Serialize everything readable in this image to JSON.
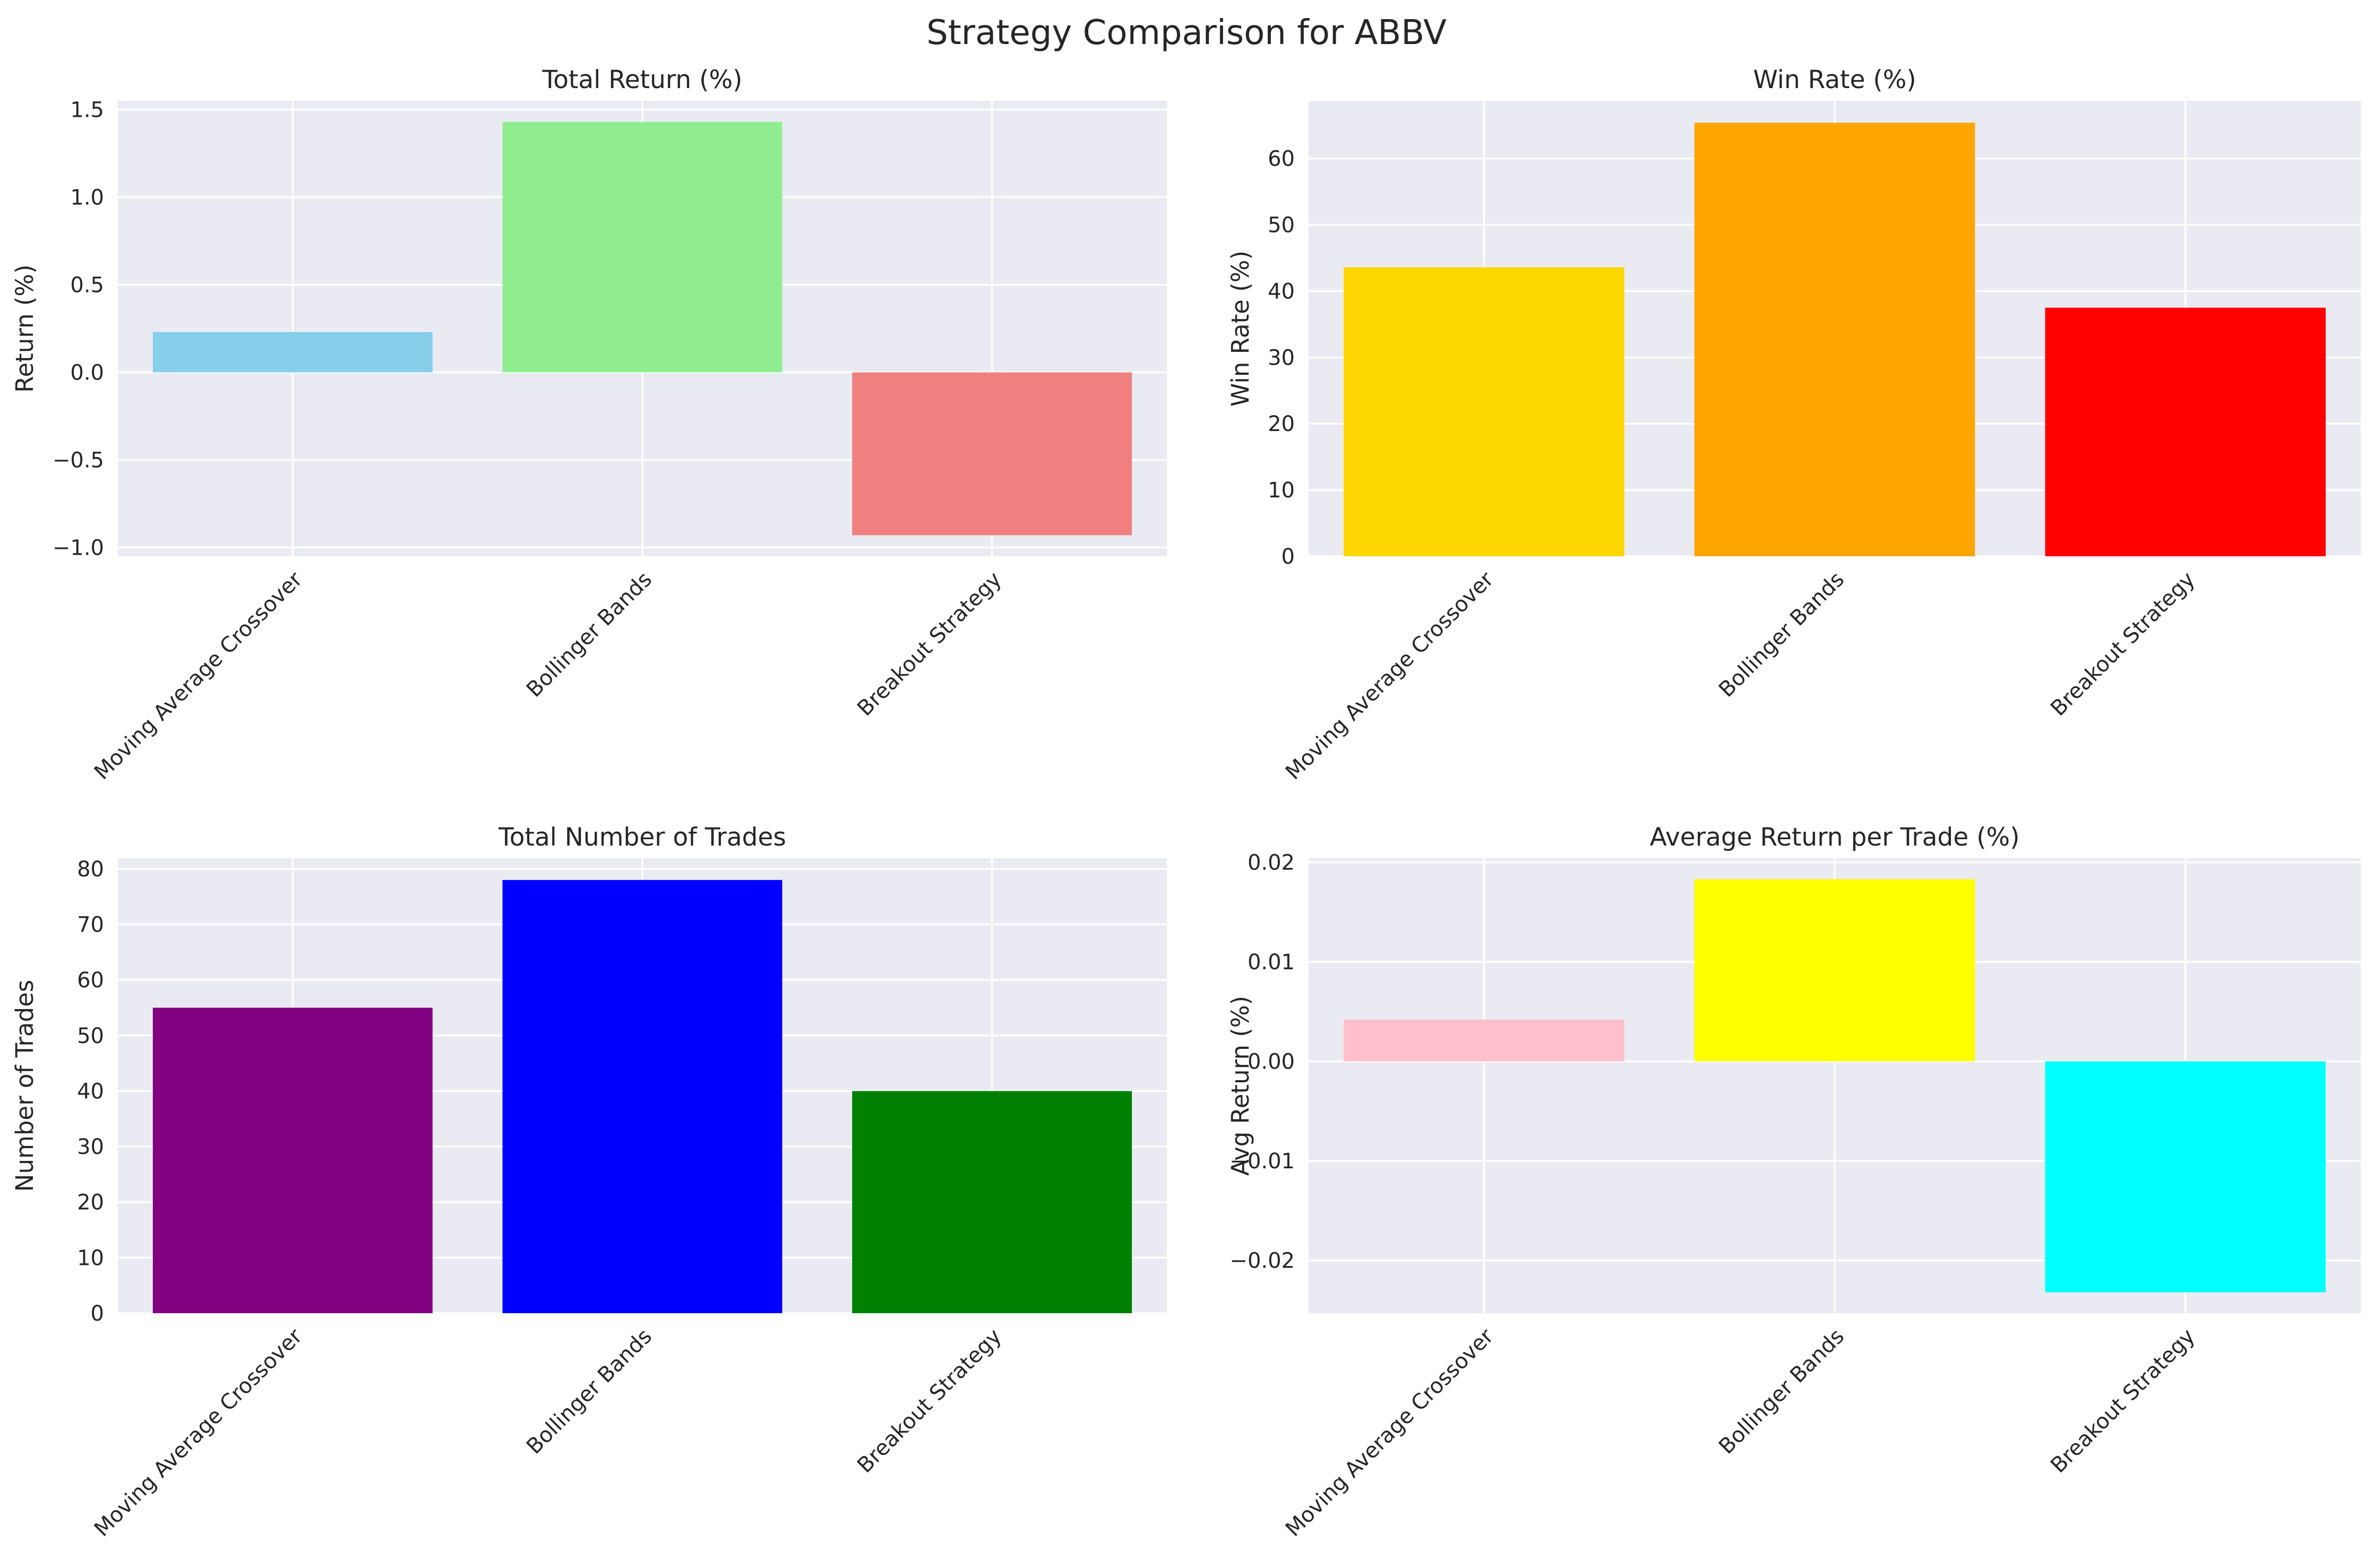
{
  "figure": {
    "title": "Strategy Comparison for ABBV"
  },
  "chart_data": [
    {
      "type": "bar",
      "title": "Total Return (%)",
      "xlabel": "",
      "ylabel": "Return (%)",
      "categories": [
        "Moving Average Crossover",
        "Bollinger Bands",
        "Breakout Strategy"
      ],
      "values": [
        0.23,
        1.43,
        -0.93
      ],
      "colors": [
        "#87CEEB",
        "#90EE90",
        "#F08080"
      ],
      "ylim": [
        -1.05,
        1.55
      ],
      "yticks": [
        -1.0,
        -0.5,
        0.0,
        0.5,
        1.0,
        1.5
      ],
      "ytick_labels": [
        "−1.0",
        "−0.5",
        "0.0",
        "0.5",
        "1.0",
        "1.5"
      ],
      "grid": true
    },
    {
      "type": "bar",
      "title": "Win Rate (%)",
      "xlabel": "",
      "ylabel": "Win Rate (%)",
      "categories": [
        "Moving Average Crossover",
        "Bollinger Bands",
        "Breakout Strategy"
      ],
      "values": [
        43.6,
        65.4,
        37.5
      ],
      "colors": [
        "#FFD700",
        "#FFA500",
        "#FF0000"
      ],
      "ylim": [
        0,
        68.7
      ],
      "yticks": [
        0,
        10,
        20,
        30,
        40,
        50,
        60
      ],
      "ytick_labels": [
        "0",
        "10",
        "20",
        "30",
        "40",
        "50",
        "60"
      ],
      "grid": true
    },
    {
      "type": "bar",
      "title": "Total Number of Trades",
      "xlabel": "",
      "ylabel": "Number of Trades",
      "categories": [
        "Moving Average Crossover",
        "Bollinger Bands",
        "Breakout Strategy"
      ],
      "values": [
        55,
        78,
        40
      ],
      "colors": [
        "#800080",
        "#0000FF",
        "#008000"
      ],
      "ylim": [
        0,
        81.9
      ],
      "yticks": [
        0,
        10,
        20,
        30,
        40,
        50,
        60,
        70,
        80
      ],
      "ytick_labels": [
        "0",
        "10",
        "20",
        "30",
        "40",
        "50",
        "60",
        "70",
        "80"
      ],
      "grid": true
    },
    {
      "type": "bar",
      "title": "Average Return per Trade (%)",
      "xlabel": "",
      "ylabel": "Avg Return (%)",
      "categories": [
        "Moving Average Crossover",
        "Bollinger Bands",
        "Breakout Strategy"
      ],
      "values": [
        0.0042,
        0.0183,
        -0.0232
      ],
      "colors": [
        "#FFC0CB",
        "#FFFF00",
        "#00FFFF"
      ],
      "ylim": [
        -0.0253,
        0.0204
      ],
      "yticks": [
        -0.02,
        -0.01,
        0.0,
        0.01,
        0.02
      ],
      "ytick_labels": [
        "−0.02",
        "−0.01",
        "0.00",
        "0.01",
        "0.02"
      ],
      "grid": true
    }
  ]
}
